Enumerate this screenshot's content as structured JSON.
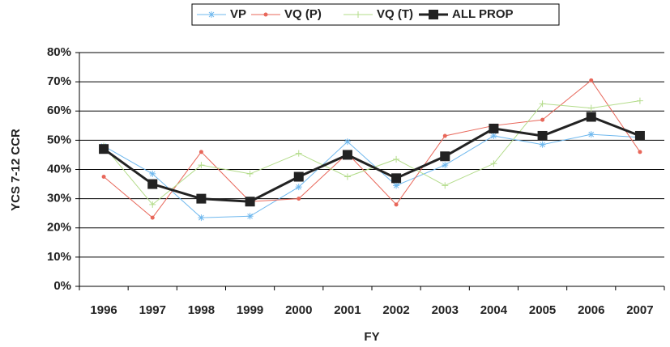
{
  "chart_data": {
    "type": "line",
    "x_label": "FY",
    "y_label": "YCS 7-12 CCR",
    "categories": [
      "1996",
      "1997",
      "1998",
      "1999",
      "2000",
      "2001",
      "2002",
      "2003",
      "2004",
      "2005",
      "2006",
      "2007"
    ],
    "series": [
      {
        "name": "VP",
        "color": "#6fb8ee",
        "marker": "star",
        "values": [
          48,
          38.5,
          23.5,
          24,
          34,
          49.5,
          34.5,
          41.5,
          51.5,
          48.5,
          52,
          51
        ]
      },
      {
        "name": "VQ (P)",
        "color": "#e8675a",
        "marker": "circle",
        "values": [
          37.5,
          23.5,
          46,
          29,
          30,
          45.5,
          28,
          51.5,
          55,
          57,
          70.5,
          46
        ]
      },
      {
        "name": "VQ (T)",
        "color": "#b3dc8a",
        "marker": "plus",
        "values": [
          48,
          28,
          41.5,
          38.5,
          45.5,
          37.5,
          43.5,
          34.5,
          42,
          62.5,
          61,
          63.5
        ]
      },
      {
        "name": "ALL PROP",
        "color": "#222222",
        "marker": "square",
        "values": [
          47,
          35,
          30,
          29,
          37.5,
          45,
          37,
          44.5,
          54,
          51.5,
          58,
          51.5
        ]
      }
    ],
    "ylim": [
      0,
      80
    ],
    "yticks": [
      {
        "value": 0,
        "label": "0%"
      },
      {
        "value": 10,
        "label": "10%"
      },
      {
        "value": 20,
        "label": "20%"
      },
      {
        "value": 30,
        "label": "30%"
      },
      {
        "value": 40,
        "label": "40%"
      },
      {
        "value": 50,
        "label": "50%"
      },
      {
        "value": 60,
        "label": "60%"
      },
      {
        "value": 70,
        "label": "70%"
      },
      {
        "value": 80,
        "label": "80%"
      }
    ],
    "grid": true,
    "legend": "top"
  }
}
